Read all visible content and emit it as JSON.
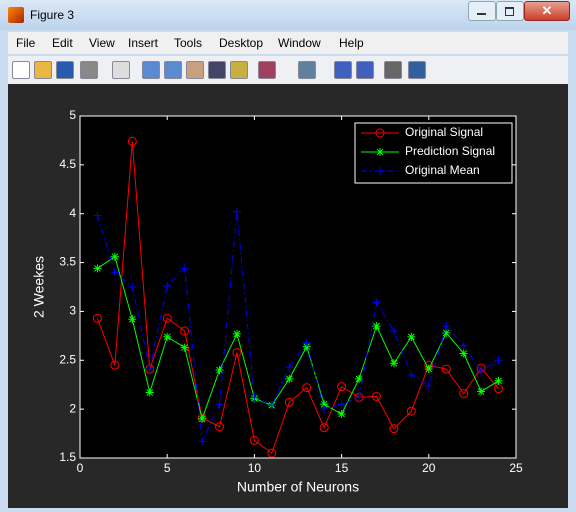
{
  "window": {
    "title": "Figure 3"
  },
  "menu": {
    "items": [
      "File",
      "Edit",
      "View",
      "Insert",
      "Tools",
      "Desktop",
      "Window",
      "Help"
    ]
  },
  "chart_data": {
    "type": "line",
    "xlabel": "Number of Neurons",
    "ylabel": "2 Weekes",
    "x": [
      1,
      2,
      3,
      4,
      5,
      6,
      7,
      8,
      9,
      10,
      11,
      12,
      13,
      14,
      15,
      16,
      17,
      18,
      19,
      20,
      21,
      22,
      23,
      24
    ],
    "xlim": [
      0,
      25
    ],
    "xticks": [
      0,
      5,
      10,
      15,
      20,
      25
    ],
    "ylim": [
      1.5,
      5
    ],
    "yticks": [
      1.5,
      2,
      2.5,
      3,
      3.5,
      4,
      4.5,
      5
    ],
    "legend": "northeast",
    "series": [
      {
        "name": "Original Signal",
        "color": "#ff0000",
        "marker": "circle",
        "style": "solid",
        "values": [
          2.93,
          2.45,
          4.74,
          2.41,
          2.93,
          2.8,
          1.91,
          1.82,
          2.58,
          1.68,
          1.55,
          2.07,
          2.22,
          1.81,
          2.23,
          2.12,
          2.13,
          1.8,
          1.98,
          2.45,
          2.41,
          2.16,
          2.42,
          2.21
        ]
      },
      {
        "name": "Prediction Signal",
        "color": "#00ff00",
        "marker": "asterisk",
        "style": "solid",
        "values": [
          3.44,
          3.56,
          2.92,
          2.17,
          2.74,
          2.63,
          1.9,
          2.4,
          2.77,
          2.11,
          2.04,
          2.31,
          2.64,
          2.05,
          1.95,
          2.31,
          2.85,
          2.47,
          2.74,
          2.41,
          2.78,
          2.57,
          2.18,
          2.29
        ]
      },
      {
        "name": "Original Mean",
        "color": "#0000ff",
        "marker": "plus",
        "style": "dashdot",
        "values": [
          3.98,
          3.4,
          3.25,
          2.41,
          3.26,
          3.44,
          1.67,
          2.05,
          4.02,
          2.12,
          2.04,
          2.43,
          2.68,
          2.0,
          2.05,
          2.12,
          3.09,
          2.8,
          2.35,
          2.24,
          2.85,
          2.65,
          2.39,
          2.5
        ]
      }
    ]
  }
}
